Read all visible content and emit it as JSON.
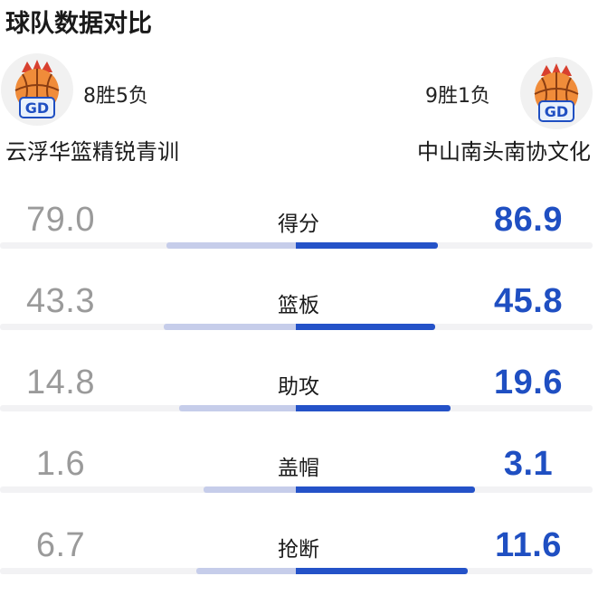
{
  "title": "球队数据对比",
  "teams": {
    "left": {
      "record": "8胜5负",
      "name": "云浮华篮精锐青训",
      "logo_text": "GD"
    },
    "right": {
      "record": "9胜1负",
      "name": "中山南头南协文化",
      "logo_text": "GD"
    }
  },
  "colors": {
    "left_bar": "#c6cdea",
    "right_bar": "#2452c8",
    "right_value": "#1f4fc2",
    "left_value": "#9a9a9a"
  },
  "stats": [
    {
      "label": "得分",
      "left": "79.0",
      "right": "86.9"
    },
    {
      "label": "篮板",
      "left": "43.3",
      "right": "45.8"
    },
    {
      "label": "助攻",
      "left": "14.8",
      "right": "19.6"
    },
    {
      "label": "盖帽",
      "left": "1.6",
      "right": "3.1"
    },
    {
      "label": "抢断",
      "left": "6.7",
      "right": "11.6"
    }
  ]
}
